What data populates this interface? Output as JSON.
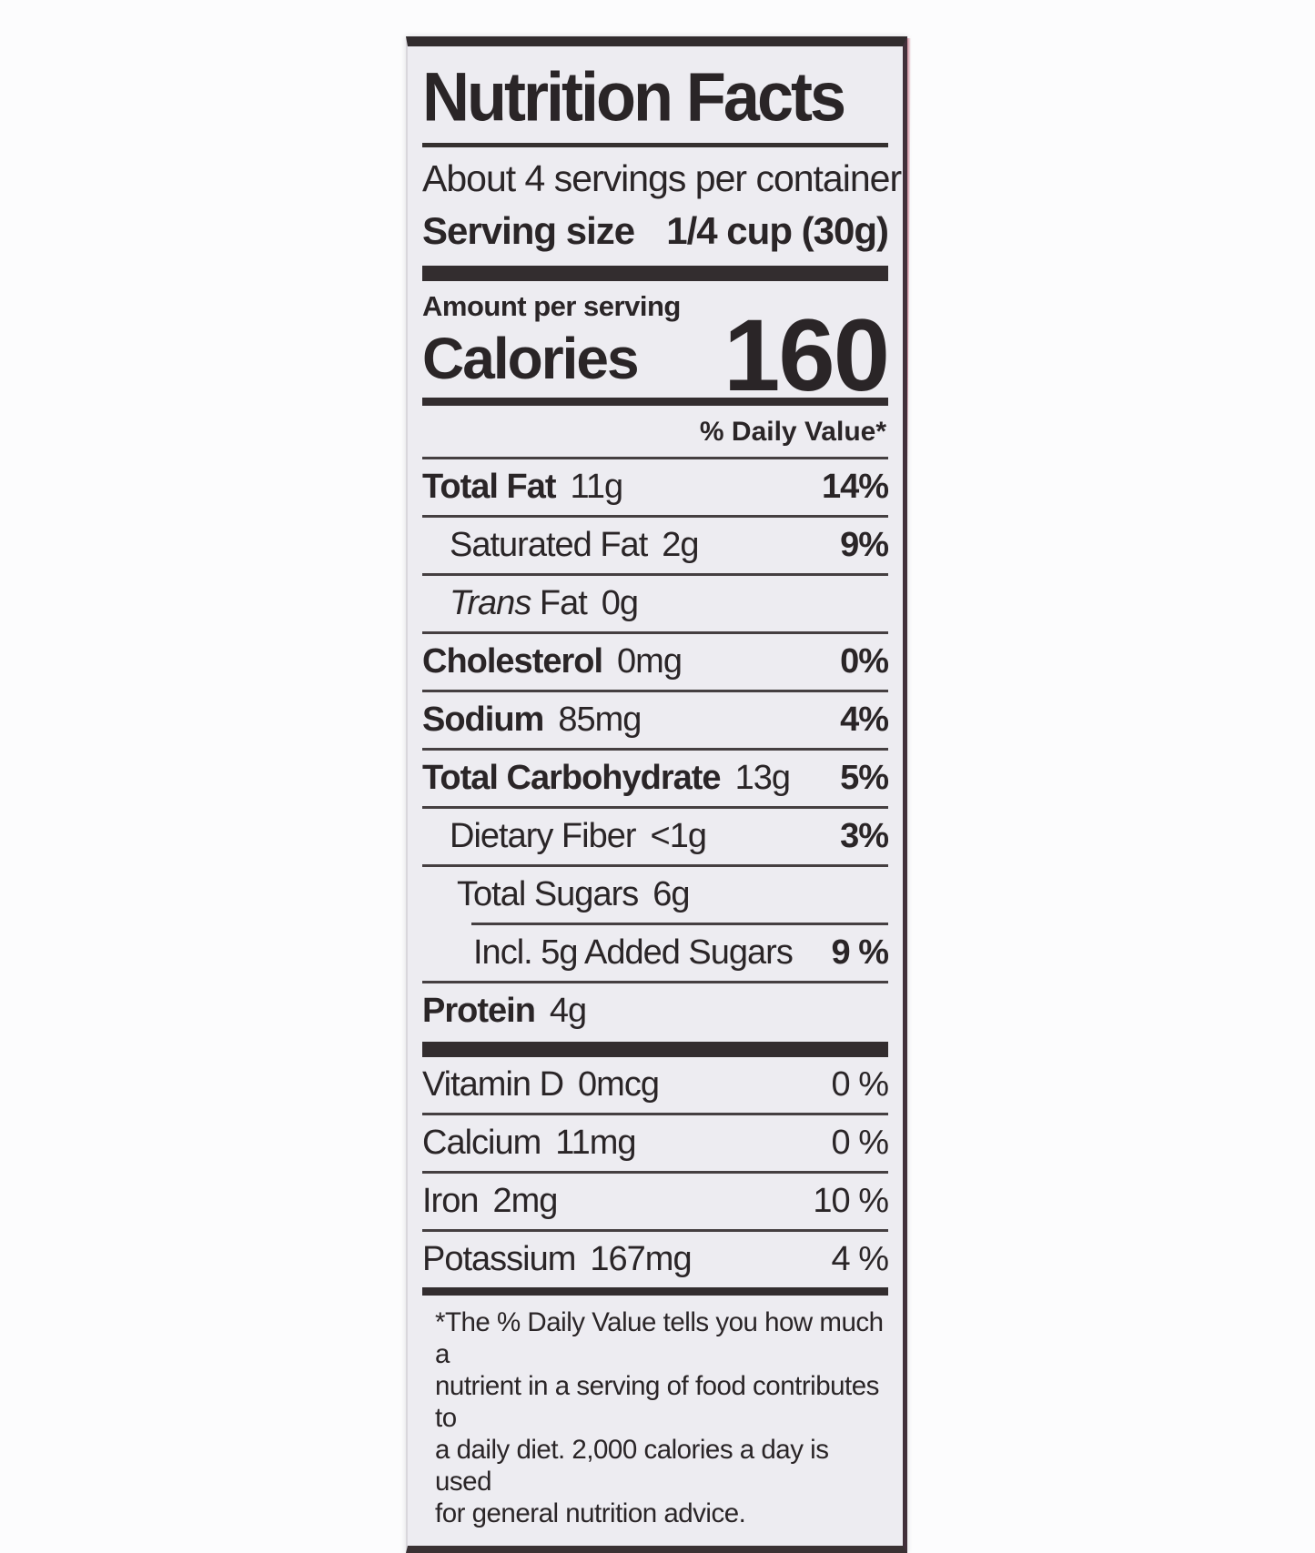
{
  "colors": {
    "label_background": "#edecf1",
    "text": "#2a2527",
    "red_package_edge": "#a8294d",
    "rule": "#332d2f"
  },
  "label": {
    "title": "Nutrition Facts",
    "servings_per_container": "About 4 servings per container",
    "serving_size_label": "Serving size",
    "serving_size_value": "1/4 cup (30g)",
    "amount_per_serving": "Amount per serving",
    "calories_label": "Calories",
    "calories_value": "160",
    "daily_value_header": "% Daily Value*",
    "nutrients": [
      {
        "name": "Total Fat",
        "amount": "11g",
        "dv": "14%"
      },
      {
        "name": "Saturated Fat",
        "amount": "2g",
        "dv": "9%"
      },
      {
        "name_italic": "Trans",
        "name_rest": " Fat",
        "amount": "0g",
        "dv": ""
      },
      {
        "name": "Cholesterol",
        "amount": "0mg",
        "dv": "0%"
      },
      {
        "name": "Sodium",
        "amount": "85mg",
        "dv": "4%"
      },
      {
        "name": "Total Carbohydrate",
        "amount": "13g",
        "dv": "5%"
      },
      {
        "name": "Dietary Fiber",
        "amount": "<1g",
        "dv": "3%"
      },
      {
        "name": "Total Sugars",
        "amount": "6g",
        "dv": ""
      },
      {
        "name": "Incl. 5g Added Sugars",
        "amount": "",
        "dv": "9 %"
      },
      {
        "name": "Protein",
        "amount": "4g",
        "dv": ""
      }
    ],
    "micronutrients": [
      {
        "name": "Vitamin D",
        "amount": "0mcg",
        "dv": "0 %"
      },
      {
        "name": "Calcium",
        "amount": "11mg",
        "dv": "0 %"
      },
      {
        "name": "Iron",
        "amount": "2mg",
        "dv": "10 %"
      },
      {
        "name": "Potassium",
        "amount": "167mg",
        "dv": "4 %"
      }
    ],
    "footnote_lines": [
      "*The % Daily Value tells you how much a",
      "nutrient in a serving of food contributes to",
      "a daily diet. 2,000 calories a day is used",
      "for general nutrition advice."
    ]
  }
}
